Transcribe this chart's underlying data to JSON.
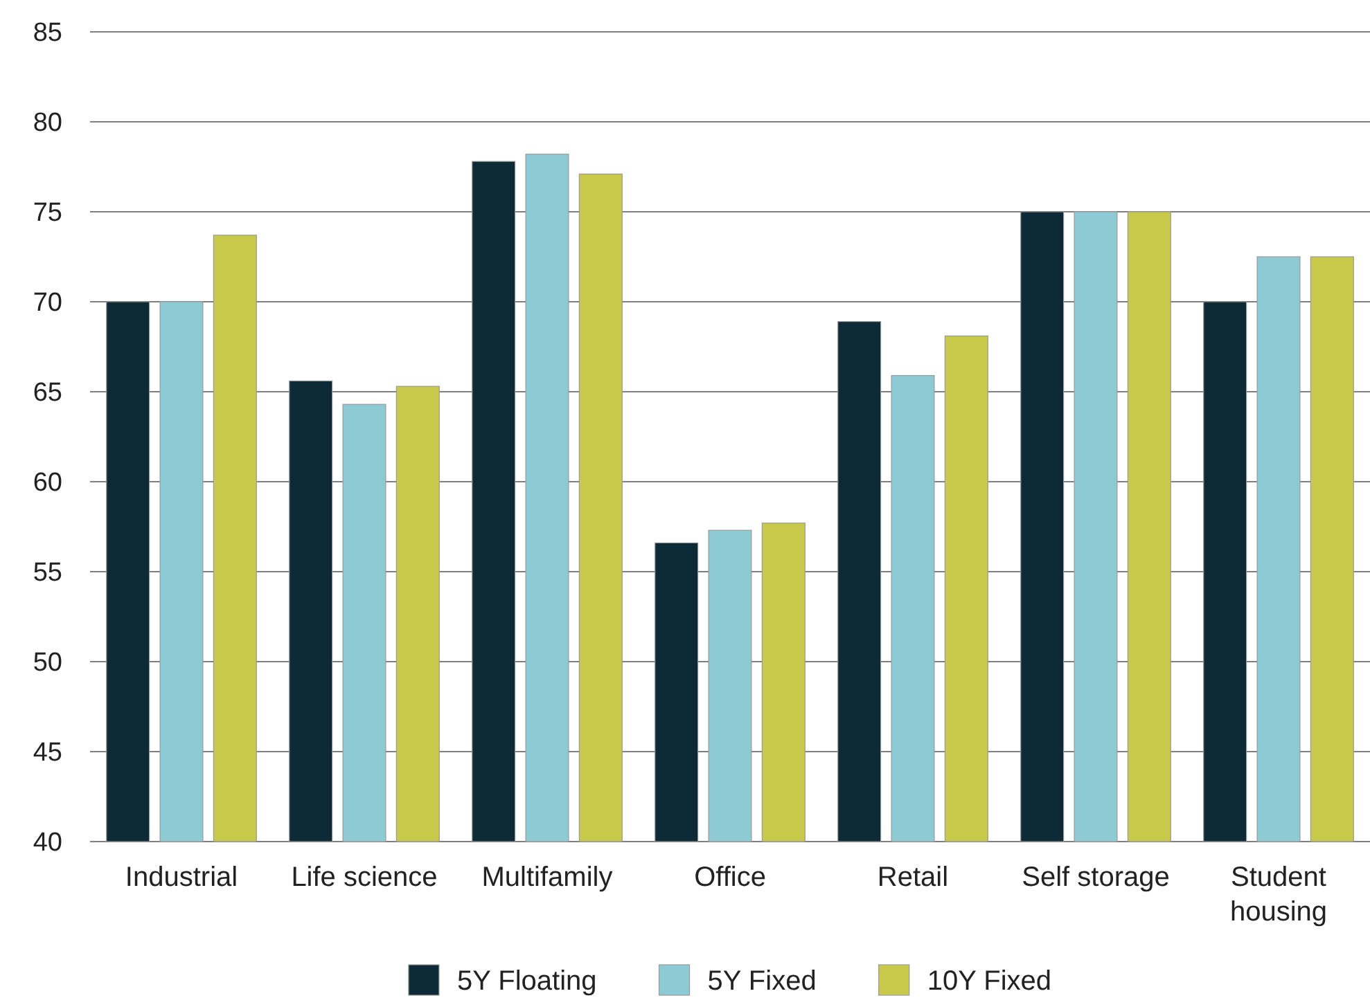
{
  "chart_data": {
    "type": "bar",
    "categories": [
      "Industrial",
      "Life science",
      "Multifamily",
      "Office",
      "Retail",
      "Self storage",
      "Student housing"
    ],
    "series": [
      {
        "name": "5Y Floating",
        "color": "#0d2b36",
        "values": [
          70,
          65.6,
          77.8,
          56.6,
          68.9,
          75,
          70
        ]
      },
      {
        "name": "5Y Fixed",
        "color": "#8ecad3",
        "values": [
          70,
          64.3,
          78.2,
          57.3,
          65.9,
          75,
          72.5
        ]
      },
      {
        "name": "10Y Fixed",
        "color": "#c8c94a",
        "values": [
          73.7,
          65.3,
          77.1,
          57.7,
          68.1,
          75,
          72.5
        ]
      }
    ],
    "ylim": [
      40,
      85
    ],
    "yticks": [
      40,
      45,
      50,
      55,
      60,
      65,
      70,
      75,
      80,
      85
    ],
    "grid": "y",
    "legend": "bottom"
  }
}
